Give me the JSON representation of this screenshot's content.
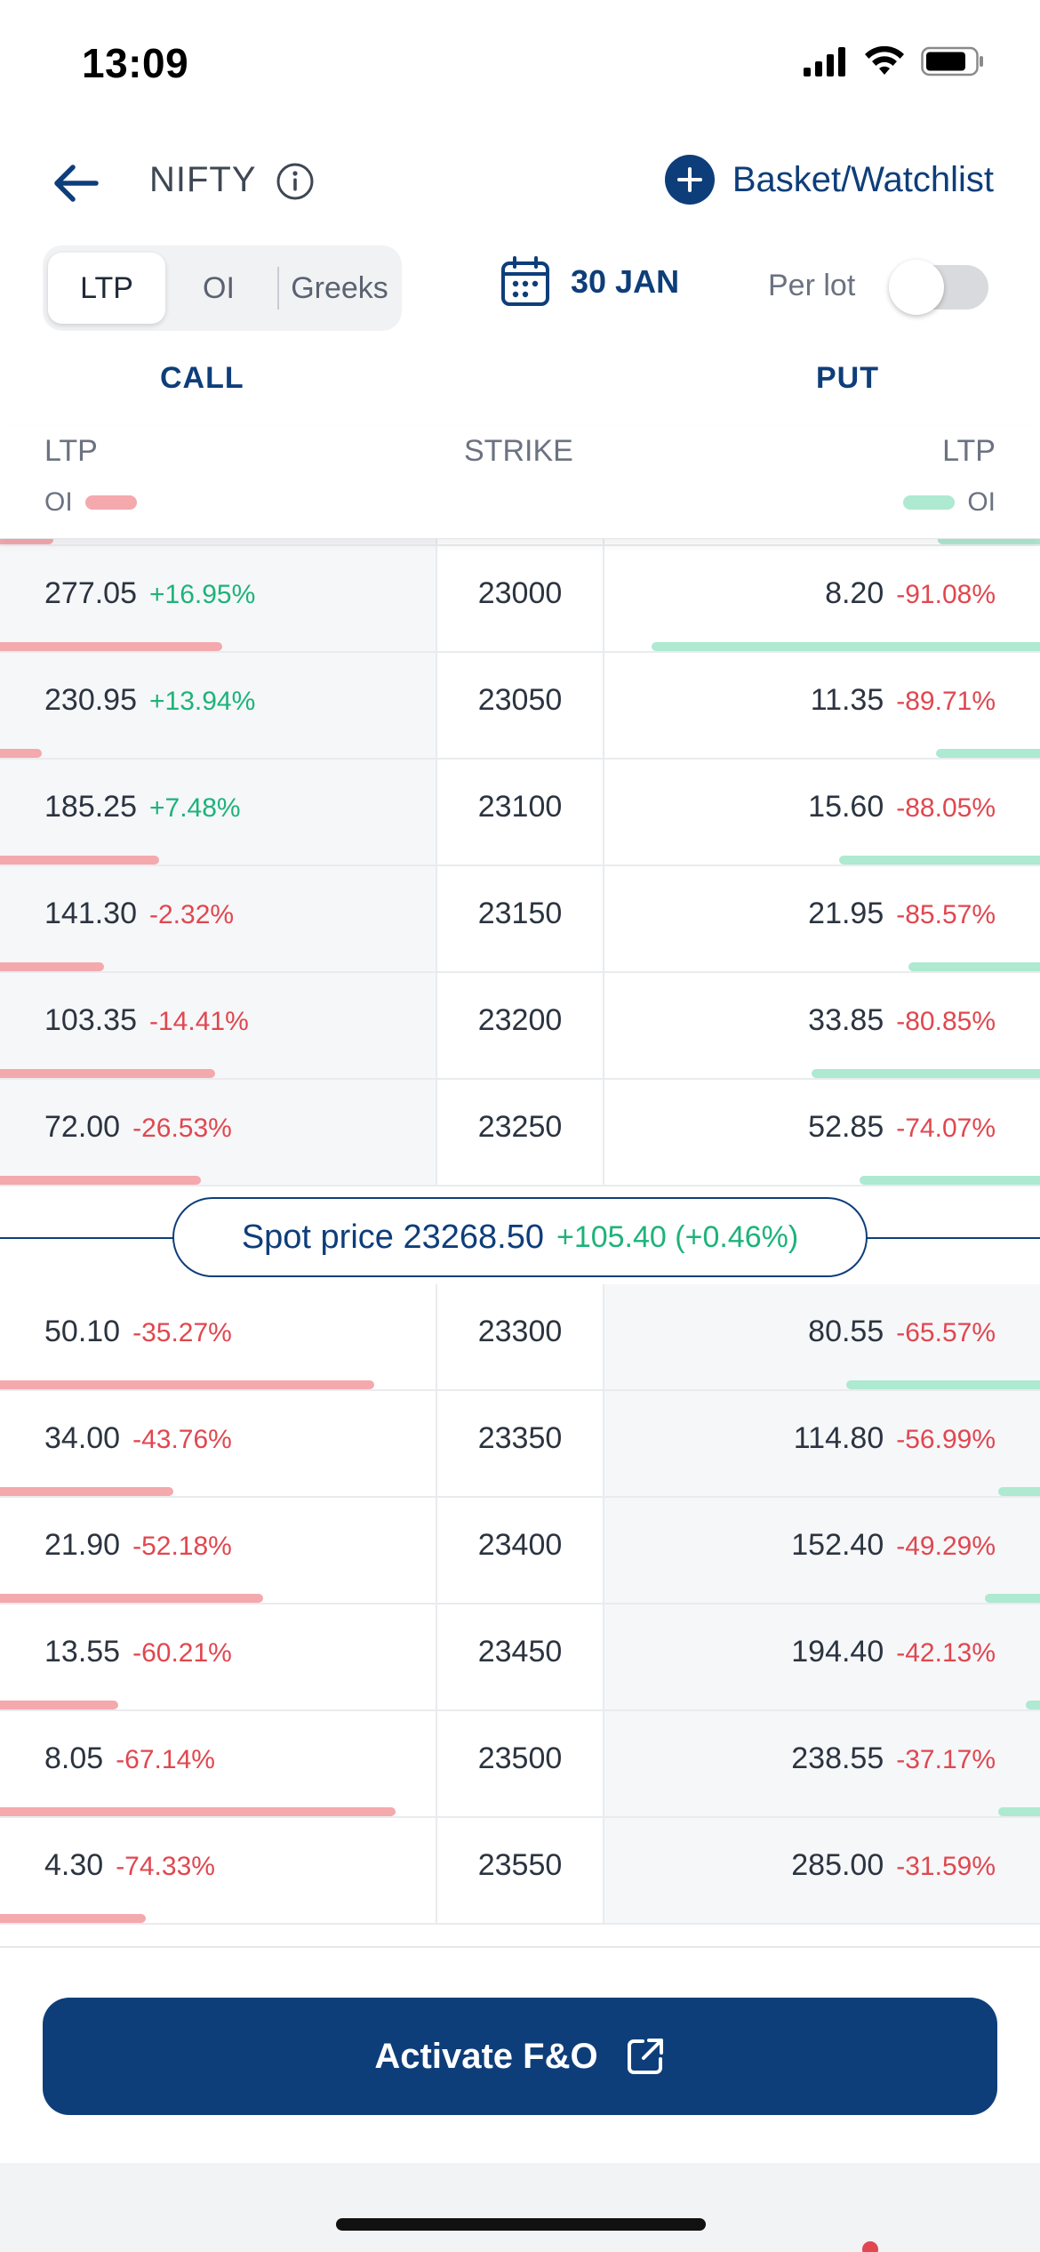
{
  "status_bar": {
    "time": "13:09"
  },
  "header": {
    "symbol": "NIFTY",
    "basket_label": "Basket/Watchlist"
  },
  "controls": {
    "tabs": [
      "LTP",
      "OI",
      "Greeks"
    ],
    "active_tab": "LTP",
    "expiry": "30 JAN",
    "per_lot_label": "Per lot",
    "per_lot_enabled": false
  },
  "chain_header": {
    "call": "CALL",
    "put": "PUT",
    "ltp_left": "LTP",
    "strike": "STRIKE",
    "ltp_right": "LTP",
    "oi_left": "OI",
    "oi_right": "OI"
  },
  "rows_above_spot": [
    {
      "strike": "23000",
      "call_ltp": "277.05",
      "call_chg": "+16.95%",
      "put_ltp": "8.20",
      "put_chg": "-91.08%",
      "call_oi_bar": 0.32,
      "put_oi_bar": 0.56
    },
    {
      "strike": "23050",
      "call_ltp": "230.95",
      "call_chg": "+13.94%",
      "put_ltp": "11.35",
      "put_chg": "-89.71%",
      "call_oi_bar": 0.06,
      "put_oi_bar": 0.15
    },
    {
      "strike": "23100",
      "call_ltp": "185.25",
      "call_chg": "+7.48%",
      "put_ltp": "15.60",
      "put_chg": "-88.05%",
      "call_oi_bar": 0.23,
      "put_oi_bar": 0.29
    },
    {
      "strike": "23150",
      "call_ltp": "141.30",
      "call_chg": "-2.32%",
      "put_ltp": "21.95",
      "put_chg": "-85.57%",
      "call_oi_bar": 0.15,
      "put_oi_bar": 0.19
    },
    {
      "strike": "23200",
      "call_ltp": "103.35",
      "call_chg": "-14.41%",
      "put_ltp": "33.85",
      "put_chg": "-80.85%",
      "call_oi_bar": 0.31,
      "put_oi_bar": 0.33
    },
    {
      "strike": "23250",
      "call_ltp": "72.00",
      "call_chg": "-26.53%",
      "put_ltp": "52.85",
      "put_chg": "-74.07%",
      "call_oi_bar": 0.29,
      "put_oi_bar": 0.26
    }
  ],
  "spot": {
    "label": "Spot price 23268.50",
    "change": "+105.40 (+0.46%)"
  },
  "rows_below_spot": [
    {
      "strike": "23300",
      "call_ltp": "50.10",
      "call_chg": "-35.27%",
      "put_ltp": "80.55",
      "put_chg": "-65.57%",
      "call_oi_bar": 0.54,
      "put_oi_bar": 0.28
    },
    {
      "strike": "23350",
      "call_ltp": "34.00",
      "call_chg": "-43.76%",
      "put_ltp": "114.80",
      "put_chg": "-56.99%",
      "call_oi_bar": 0.25,
      "put_oi_bar": 0.06
    },
    {
      "strike": "23400",
      "call_ltp": "21.90",
      "call_chg": "-52.18%",
      "put_ltp": "152.40",
      "put_chg": "-49.29%",
      "call_oi_bar": 0.38,
      "put_oi_bar": 0.08
    },
    {
      "strike": "23450",
      "call_ltp": "13.55",
      "call_chg": "-60.21%",
      "put_ltp": "194.40",
      "put_chg": "-42.13%",
      "call_oi_bar": 0.17,
      "put_oi_bar": 0.02
    },
    {
      "strike": "23500",
      "call_ltp": "8.05",
      "call_chg": "-67.14%",
      "put_ltp": "238.55",
      "put_chg": "-37.17%",
      "call_oi_bar": 0.57,
      "put_oi_bar": 0.06
    },
    {
      "strike": "23550",
      "call_ltp": "4.30",
      "call_chg": "-74.33%",
      "put_ltp": "285.00",
      "put_chg": "-31.59%",
      "call_oi_bar": 0.21,
      "put_oi_bar": 0.0
    }
  ],
  "footer": {
    "activate_label": "Activate F&O"
  },
  "colors": {
    "brand": "#0e3e7a",
    "positive": "#1db37a",
    "negative": "#e0474f",
    "call_oi": "#f4a9ad",
    "put_oi": "#aee9d1"
  },
  "icons": {
    "back": "arrow-left-icon",
    "info": "info-icon",
    "add": "plus-circle-icon",
    "calendar": "calendar-icon",
    "external": "external-link-icon"
  }
}
